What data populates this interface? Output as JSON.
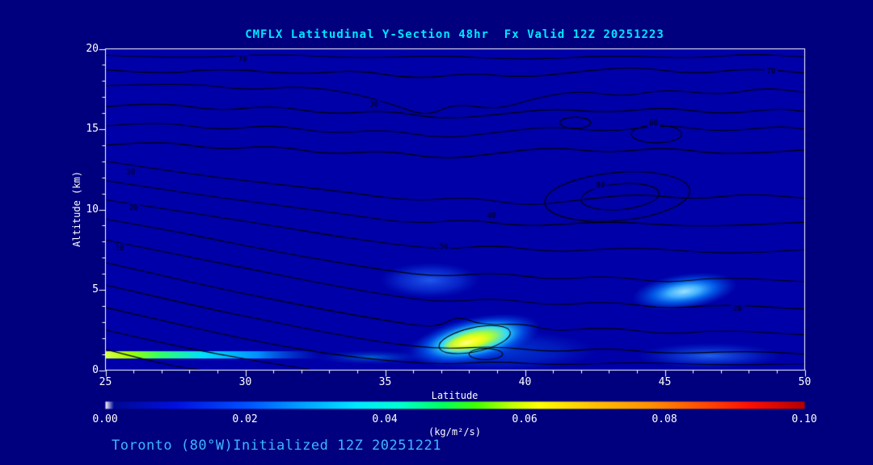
{
  "footer": {
    "caption": "Toronto (80°W)Initialized 12Z 20251221"
  },
  "chart_data": {
    "type": "contour-cross-section",
    "title": "CMFLX Latitudinal Y-Section 48hr  Fx Valid 12Z 20251223",
    "xlabel": "Latitude",
    "ylabel": "Altitude (km)",
    "xlim": [
      25,
      50
    ],
    "ylim": [
      0,
      20
    ],
    "x_ticks": [
      25,
      30,
      35,
      40,
      45,
      50
    ],
    "y_ticks": [
      0,
      5,
      10,
      15,
      20
    ],
    "x_minor_step": 1,
    "y_minor_step": 1,
    "grid": false,
    "colors": {
      "background": "#00007e",
      "plot_bg": "#0000a8",
      "contour": "#000000",
      "axis": "#ffffff",
      "text": "#ffffff",
      "title": "#00e5ff",
      "footer": "#3fb6ff"
    },
    "contours": {
      "lines": [
        [
          [
            25,
            19.6
          ],
          [
            28,
            19.4
          ],
          [
            31,
            19.7
          ],
          [
            34,
            19.4
          ],
          [
            37,
            19.6
          ],
          [
            40,
            19.3
          ],
          [
            43,
            19.6
          ],
          [
            46,
            19.4
          ],
          [
            48,
            19.7
          ],
          [
            50,
            19.5
          ]
        ],
        [
          [
            25,
            18.7
          ],
          [
            27,
            18.4
          ],
          [
            29,
            18.8
          ],
          [
            32,
            18.4
          ],
          [
            34,
            18.7
          ],
          [
            36,
            18.1
          ],
          [
            38,
            18.5
          ],
          [
            40,
            18.2
          ],
          [
            42,
            18.6
          ],
          [
            44,
            18.9
          ],
          [
            46,
            18.4
          ],
          [
            48,
            18.8
          ],
          [
            50,
            18.5
          ]
        ],
        [
          [
            25,
            17.7
          ],
          [
            28,
            17.9
          ],
          [
            30,
            17.4
          ],
          [
            32,
            17.7
          ],
          [
            34,
            17.2
          ],
          [
            35.5,
            16.4
          ],
          [
            36.5,
            15.8
          ],
          [
            37.5,
            16.6
          ],
          [
            39,
            16.2
          ],
          [
            40.5,
            17.0
          ],
          [
            42,
            17.4
          ],
          [
            43.5,
            17.0
          ],
          [
            45,
            17.5
          ],
          [
            47,
            17.1
          ],
          [
            48.5,
            17.6
          ],
          [
            50,
            17.3
          ]
        ],
        [
          [
            25,
            16.4
          ],
          [
            27,
            16.7
          ],
          [
            29,
            16.1
          ],
          [
            31,
            16.5
          ],
          [
            33,
            15.9
          ],
          [
            35,
            16.2
          ],
          [
            37,
            15.6
          ],
          [
            39,
            15.9
          ],
          [
            41,
            16.3
          ],
          [
            43,
            16.0
          ],
          [
            45,
            16.4
          ],
          [
            47,
            15.9
          ],
          [
            49,
            16.3
          ],
          [
            50,
            16.1
          ]
        ],
        [
          [
            25,
            15.2
          ],
          [
            27,
            15.5
          ],
          [
            29,
            14.9
          ],
          [
            31,
            15.3
          ],
          [
            33,
            14.7
          ],
          [
            35,
            15.0
          ],
          [
            37,
            14.4
          ],
          [
            39,
            14.8
          ],
          [
            41,
            15.2
          ],
          [
            43,
            14.8
          ],
          [
            45,
            15.3
          ],
          [
            47,
            14.8
          ],
          [
            49,
            15.2
          ],
          [
            50,
            15.0
          ]
        ],
        [
          [
            25,
            14.0
          ],
          [
            27,
            14.3
          ],
          [
            29,
            13.7
          ],
          [
            31,
            14.0
          ],
          [
            33,
            13.4
          ],
          [
            35,
            13.7
          ],
          [
            37,
            13.1
          ],
          [
            39,
            13.5
          ],
          [
            41,
            13.9
          ],
          [
            43,
            13.5
          ],
          [
            45,
            13.9
          ],
          [
            47,
            13.4
          ],
          [
            50,
            13.7
          ]
        ],
        [
          [
            25,
            13.0
          ],
          [
            28,
            12.2
          ],
          [
            31,
            11.6
          ],
          [
            34,
            11.0
          ],
          [
            36,
            10.5
          ],
          [
            38,
            10.8
          ],
          [
            40,
            10.2
          ],
          [
            42,
            10.6
          ],
          [
            44,
            11.0
          ],
          [
            46,
            10.6
          ],
          [
            48,
            11.0
          ],
          [
            50,
            10.7
          ]
        ],
        [
          [
            25,
            11.8
          ],
          [
            28,
            11.0
          ],
          [
            31,
            10.3
          ],
          [
            34,
            9.6
          ],
          [
            36,
            9.1
          ],
          [
            38,
            9.4
          ],
          [
            40,
            8.9
          ],
          [
            43,
            9.3
          ],
          [
            46,
            8.9
          ],
          [
            50,
            9.2
          ]
        ],
        [
          [
            25,
            10.6
          ],
          [
            28,
            9.8
          ],
          [
            31,
            9.0
          ],
          [
            33,
            8.4
          ],
          [
            35,
            7.9
          ],
          [
            37,
            7.5
          ],
          [
            39,
            7.8
          ],
          [
            41,
            7.3
          ],
          [
            44,
            7.7
          ],
          [
            47,
            7.2
          ],
          [
            50,
            7.5
          ]
        ],
        [
          [
            25,
            9.4
          ],
          [
            27,
            8.8
          ],
          [
            29,
            8.1
          ],
          [
            31,
            7.4
          ],
          [
            33,
            6.8
          ],
          [
            35,
            6.2
          ],
          [
            37,
            5.8
          ],
          [
            39,
            6.1
          ],
          [
            41,
            5.6
          ],
          [
            43,
            5.9
          ],
          [
            45,
            5.4
          ],
          [
            47,
            5.8
          ],
          [
            50,
            5.5
          ]
        ],
        [
          [
            25,
            8.1
          ],
          [
            27,
            7.4
          ],
          [
            29,
            6.7
          ],
          [
            31,
            6.0
          ],
          [
            33,
            5.3
          ],
          [
            35,
            4.7
          ],
          [
            37,
            4.2
          ],
          [
            39,
            4.5
          ],
          [
            41,
            4.0
          ],
          [
            43,
            4.3
          ],
          [
            45,
            3.8
          ],
          [
            47,
            4.1
          ],
          [
            50,
            3.8
          ]
        ],
        [
          [
            25,
            6.7
          ],
          [
            27,
            5.9
          ],
          [
            29,
            5.1
          ],
          [
            31,
            4.4
          ],
          [
            33,
            3.7
          ],
          [
            35,
            3.1
          ],
          [
            36.8,
            2.6
          ],
          [
            37.6,
            3.4
          ],
          [
            38.4,
            2.8
          ],
          [
            40,
            2.9
          ],
          [
            41,
            2.4
          ],
          [
            43,
            2.7
          ],
          [
            45,
            2.2
          ],
          [
            47,
            2.5
          ],
          [
            50,
            2.2
          ]
        ],
        [
          [
            25,
            5.3
          ],
          [
            27,
            4.5
          ],
          [
            29,
            3.7
          ],
          [
            31,
            3.0
          ],
          [
            33,
            2.3
          ],
          [
            35,
            1.7
          ],
          [
            37,
            1.3
          ],
          [
            39,
            1.5
          ],
          [
            41,
            1.1
          ],
          [
            43,
            1.4
          ],
          [
            45,
            1.0
          ],
          [
            48,
            1.2
          ],
          [
            50,
            1.0
          ]
        ],
        [
          [
            25,
            3.9
          ],
          [
            27,
            3.1
          ],
          [
            29,
            2.3
          ],
          [
            31,
            1.6
          ],
          [
            33,
            1.0
          ],
          [
            35,
            0.6
          ],
          [
            37,
            0.35
          ],
          [
            39,
            0.55
          ],
          [
            41,
            0.3
          ],
          [
            44,
            0.5
          ],
          [
            47,
            0.3
          ],
          [
            50,
            0.4
          ]
        ],
        [
          [
            25,
            2.5
          ],
          [
            27,
            1.7
          ],
          [
            29,
            1.0
          ],
          [
            31,
            0.4
          ],
          [
            32.3,
            0.05
          ]
        ],
        [
          [
            25,
            1.3
          ],
          [
            26.3,
            0.7
          ],
          [
            27.6,
            0.2
          ],
          [
            28.4,
            0.02
          ]
        ]
      ],
      "loops": [
        {
          "cx": 43.3,
          "cy": 10.8,
          "rx": 2.6,
          "ry": 1.5,
          "rot": -5
        },
        {
          "cx": 43.4,
          "cy": 10.8,
          "rx": 1.4,
          "ry": 0.8,
          "rot": -5
        },
        {
          "cx": 44.7,
          "cy": 14.7,
          "rx": 0.9,
          "ry": 0.55,
          "rot": 0
        },
        {
          "cx": 41.8,
          "cy": 15.4,
          "rx": 0.55,
          "ry": 0.35,
          "rot": 0
        },
        {
          "cx": 38.2,
          "cy": 1.9,
          "rx": 1.3,
          "ry": 0.75,
          "rot": -12
        },
        {
          "cx": 38.6,
          "cy": 1.0,
          "rx": 0.6,
          "ry": 0.35,
          "rot": 0
        }
      ],
      "labels": [
        {
          "text": "70",
          "lat": 29.9,
          "alt": 19.35
        },
        {
          "text": "30",
          "lat": 34.6,
          "alt": 16.5
        },
        {
          "text": "70",
          "lat": 48.8,
          "alt": 18.6
        },
        {
          "text": "60",
          "lat": 44.6,
          "alt": 15.35
        },
        {
          "text": "80",
          "lat": 42.7,
          "alt": 11.5
        },
        {
          "text": "40",
          "lat": 38.8,
          "alt": 9.6
        },
        {
          "text": "50",
          "lat": 37.1,
          "alt": 7.7
        },
        {
          "text": "30",
          "lat": 25.9,
          "alt": 12.3
        },
        {
          "text": "20",
          "lat": 26.0,
          "alt": 10.1
        },
        {
          "text": "10",
          "lat": 25.5,
          "alt": 7.6
        },
        {
          "text": "20",
          "lat": 47.6,
          "alt": 3.8
        }
      ]
    },
    "shading": {
      "blobs": [
        {
          "cx": 36.6,
          "cy": 5.6,
          "rx": 1.8,
          "ry": 1.1,
          "rot": 0,
          "stops": [
            [
              0,
              "rgba(40,110,255,0.8)"
            ],
            [
              0.6,
              "rgba(20,80,240,0.45)"
            ],
            [
              1,
              "rgba(0,60,220,0)"
            ]
          ]
        },
        {
          "cx": 39.0,
          "cy": 1.2,
          "rx": 3.6,
          "ry": 1.3,
          "rot": 0,
          "stops": [
            [
              0,
              "rgba(0,120,255,0.5)"
            ],
            [
              0.6,
              "rgba(0,90,240,0.3)"
            ],
            [
              1,
              "rgba(0,60,220,0)"
            ]
          ]
        },
        {
          "cx": 46.6,
          "cy": 0.9,
          "rx": 2.6,
          "ry": 0.8,
          "rot": 0,
          "stops": [
            [
              0,
              "rgba(40,120,255,0.8)"
            ],
            [
              0.5,
              "rgba(20,90,240,0.45)"
            ],
            [
              1,
              "rgba(0,60,220,0)"
            ]
          ]
        },
        {
          "cx": 34.5,
          "cy": 0.8,
          "rx": 2.0,
          "ry": 0.45,
          "rot": 0,
          "stops": [
            [
              0,
              "rgba(0,200,255,0.5)"
            ],
            [
              1,
              "rgba(0,60,220,0)"
            ]
          ]
        },
        {
          "cx": 45.7,
          "cy": 4.9,
          "rx": 1.9,
          "ry": 1.1,
          "rot": -8,
          "stops": [
            [
              0,
              "#9fe0ff"
            ],
            [
              0.3,
              "#40b0ff"
            ],
            [
              0.6,
              "rgba(0,120,255,0.7)"
            ],
            [
              1,
              "rgba(0,70,230,0)"
            ]
          ]
        },
        {
          "cx": 38.2,
          "cy": 1.9,
          "rx": 2.4,
          "ry": 1.4,
          "rot": -12,
          "stops": [
            [
              0,
              "#ffff30"
            ],
            [
              0.25,
              "#b0ff30"
            ],
            [
              0.5,
              "#30d8ff"
            ],
            [
              0.75,
              "rgba(0,110,255,0.6)"
            ],
            [
              1,
              "rgba(0,60,220,0)"
            ]
          ]
        },
        {
          "cx": 37.9,
          "cy": 1.7,
          "rx": 0.9,
          "ry": 0.5,
          "rot": -12,
          "stops": [
            [
              0,
              "#ffff90"
            ],
            [
              0.6,
              "rgba(255,255,0,0.55)"
            ],
            [
              1,
              "rgba(255,255,0,0)"
            ]
          ]
        }
      ],
      "streaks": [
        {
          "lat0": 25,
          "lat1": 32.8,
          "alt": 0.95,
          "h": 0.45,
          "stops": [
            [
              0,
              "#d8ff50"
            ],
            [
              0.1,
              "#aaff00"
            ],
            [
              0.25,
              "#33ff66"
            ],
            [
              0.45,
              "#00e0ff"
            ],
            [
              0.7,
              "#0090ff"
            ],
            [
              1,
              "rgba(0,60,220,0)"
            ]
          ]
        }
      ]
    },
    "colorbar": {
      "ticks": [
        "0.00",
        "0.02",
        "0.04",
        "0.06",
        "0.08",
        "0.10"
      ],
      "unit": "(kg/m²/s)",
      "range": [
        0.0,
        0.1
      ],
      "stops": [
        [
          0,
          "#ffffff"
        ],
        [
          0.012,
          "#000890"
        ],
        [
          0.1,
          "#0010e0"
        ],
        [
          0.2,
          "#0050ff"
        ],
        [
          0.28,
          "#00a0ff"
        ],
        [
          0.36,
          "#00e8ff"
        ],
        [
          0.42,
          "#00ffd0"
        ],
        [
          0.48,
          "#00ff60"
        ],
        [
          0.53,
          "#40ff00"
        ],
        [
          0.58,
          "#c0ff00"
        ],
        [
          0.62,
          "#ffff00"
        ],
        [
          0.7,
          "#ffc000"
        ],
        [
          0.78,
          "#ff9000"
        ],
        [
          0.85,
          "#ff5000"
        ],
        [
          0.92,
          "#ff1000"
        ],
        [
          1,
          "#b40000"
        ]
      ]
    }
  }
}
